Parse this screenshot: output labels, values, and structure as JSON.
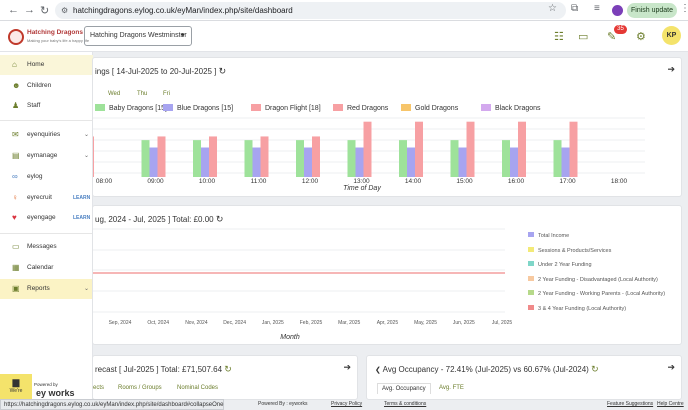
{
  "browser": {
    "url": "hatchingdragons.eylog.co.uk/eyMan/index.php/site/dashboard",
    "finish_update": "Finish update"
  },
  "header": {
    "logo_title": "Hatching Dragons",
    "logo_tagline": "Making your baby's life a happy life",
    "nursery_select": "Hatching Dragons Westminster",
    "notif_count": "35",
    "user_initials": "KP"
  },
  "sidebar": {
    "items": [
      {
        "label": "Home",
        "icon": "home-icon",
        "learn": "",
        "chev": ""
      },
      {
        "label": "Children",
        "icon": "children-icon",
        "learn": "",
        "chev": ""
      },
      {
        "label": "Staff",
        "icon": "staff-icon",
        "learn": "",
        "chev": ""
      },
      {
        "label": "eyenquiries",
        "icon": "enquiries-icon",
        "learn": "",
        "chev": "⌄"
      },
      {
        "label": "eymanage",
        "icon": "manage-icon",
        "learn": "",
        "chev": "⌄"
      },
      {
        "label": "eylog",
        "icon": "eylog-icon",
        "learn": "",
        "chev": ""
      },
      {
        "label": "eyrecruit",
        "icon": "recruit-icon",
        "learn": "LEARN",
        "chev": ""
      },
      {
        "label": "eyengage",
        "icon": "engage-icon",
        "learn": "LEARN",
        "chev": ""
      },
      {
        "label": "Messages",
        "icon": "messages-icon",
        "learn": "",
        "chev": ""
      },
      {
        "label": "Calendar",
        "icon": "calendar-icon",
        "learn": "",
        "chev": ""
      },
      {
        "label": "Reports",
        "icon": "reports-icon",
        "learn": "",
        "chev": "⌄"
      }
    ],
    "chat": {
      "line1": "We're",
      "line2": "online!"
    },
    "powered": "Powered by",
    "powered_brand": "ey works"
  },
  "card1": {
    "title": "ings [ 14-Jul-2025 to 20-Jul-2025 ]",
    "days": [
      "Wed",
      "Thu",
      "Fri"
    ]
  },
  "card2": {
    "title": "ug, 2024 - Jul, 2025 ] Total: £0.00"
  },
  "card3": {
    "title": "recast [ Jul-2025 ] Total: £71,507.64",
    "tabs": [
      "ects",
      "Rooms / Groups",
      "Nominal Codes"
    ]
  },
  "card4": {
    "title": "Avg Occupancy - 72.41% (Jul-2025) vs 60.67% (Jul-2024)",
    "tabs": [
      "Avg. Occupancy",
      "Avg. FTE"
    ]
  },
  "status_url": "https://hatchingdragons.eylog.co.uk/eyMan/index.php/site/dashboard#collapseOne",
  "footer": {
    "powered": "Powered By : eyworks",
    "privacy": "Privacy Policy",
    "terms": "Terms & conditions",
    "features": "Feature Suggestions",
    "help": "Help Centre"
  },
  "chart_data": [
    {
      "type": "bar",
      "title": "",
      "xlabel": "Time of Day",
      "ylabel": "",
      "categories": [
        "08:00",
        "09:00",
        "10:00",
        "11:00",
        "12:00",
        "13:00",
        "14:00",
        "15:00",
        "16:00",
        "17:00",
        "18:00"
      ],
      "series": [
        {
          "name": "Baby Dragons [15]",
          "color": "#9ee29a",
          "values": [
            5,
            5,
            5,
            5,
            5,
            5,
            5,
            5,
            5,
            5,
            0
          ]
        },
        {
          "name": "Blue Dragons [15]",
          "color": "#a7a4f0",
          "values": [
            4,
            4,
            4,
            4,
            4,
            4,
            4,
            4,
            4,
            4,
            0
          ]
        },
        {
          "name": "Dragon Flight [18]",
          "color": "#f7a0a3",
          "values": [
            5.5,
            5.5,
            5.5,
            5.5,
            5.5,
            7.5,
            7.5,
            7.5,
            7.5,
            7.5,
            0
          ]
        },
        {
          "name": "Red Dragons",
          "color": "#f7a0a3",
          "values": [
            0,
            0,
            0,
            0,
            0,
            0,
            0,
            0,
            0,
            0,
            0
          ]
        },
        {
          "name": "Gold Dragons",
          "color": "#f7c56a",
          "values": [
            0,
            0,
            0,
            0,
            0,
            0,
            0,
            0,
            0,
            0,
            0
          ]
        },
        {
          "name": "Black Dragons",
          "color": "#d3a9ee",
          "values": [
            0,
            0,
            0,
            0,
            0,
            0,
            0,
            0,
            0,
            0,
            0
          ]
        }
      ],
      "ylim": [
        0,
        8
      ]
    },
    {
      "type": "line",
      "xlabel": "Month",
      "title": "",
      "categories": [
        "Sep, 2024",
        "Oct, 2024",
        "Nov, 2024",
        "Dec, 2024",
        "Jan, 2025",
        "Feb, 2025",
        "Mar, 2025",
        "Apr, 2025",
        "May, 2025",
        "Jun, 2025",
        "Jul, 2025"
      ],
      "series": [
        {
          "name": "Total Income",
          "color": "#a7a4f0",
          "values": [
            0,
            0,
            0,
            0,
            0,
            0,
            0,
            0,
            0,
            0,
            0
          ]
        },
        {
          "name": "Sessions & Products/Services",
          "color": "#f3ea78",
          "values": [
            0,
            0,
            0,
            0,
            0,
            0,
            0,
            0,
            0,
            0,
            0
          ]
        },
        {
          "name": "Under 2 Year Funding",
          "color": "#7fd6c8",
          "values": [
            0,
            0,
            0,
            0,
            0,
            0,
            0,
            0,
            0,
            0,
            0
          ]
        },
        {
          "name": "2 Year Funding - Disadvantaged (Local Authority)",
          "color": "#f7c9a0",
          "values": [
            0,
            0,
            0,
            0,
            0,
            0,
            0,
            0,
            0,
            0,
            0
          ]
        },
        {
          "name": "2 Year Funding - Working Parents - (Local Authority)",
          "color": "#b6d98a",
          "values": [
            0,
            0,
            0,
            0,
            0,
            0,
            0,
            0,
            0,
            0,
            0
          ]
        },
        {
          "name": "3 & 4 Year Funding (Local Authority)",
          "color": "#f08a8a",
          "values": [
            0,
            0,
            0,
            0,
            0,
            0,
            0,
            0,
            0,
            0,
            0
          ]
        }
      ]
    }
  ]
}
